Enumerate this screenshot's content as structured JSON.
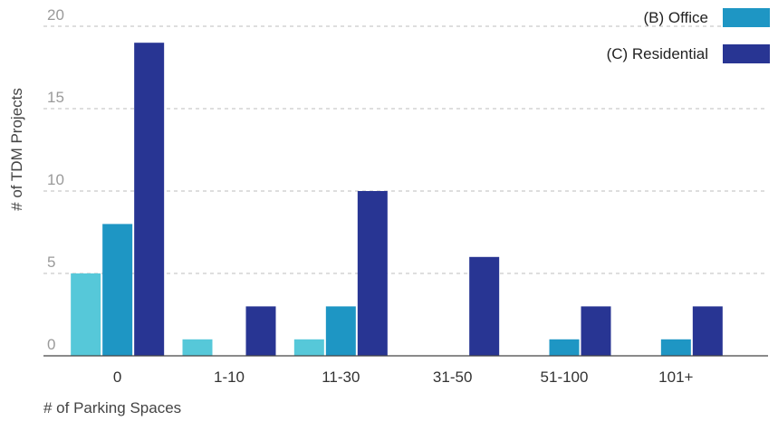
{
  "chart_data": {
    "type": "bar",
    "categories": [
      "0",
      "1-10",
      "11-30",
      "31-50",
      "51-100",
      "101+"
    ],
    "series": [
      {
        "name": "",
        "color": "#56c8d9",
        "values": [
          5,
          1,
          1,
          0,
          0,
          0
        ]
      },
      {
        "name": "(B) Office",
        "color": "#1e96c4",
        "values": [
          8,
          0,
          3,
          0,
          1,
          1
        ]
      },
      {
        "name": "(C) Residential",
        "color": "#283593",
        "values": [
          19,
          3,
          10,
          6,
          3,
          3
        ]
      }
    ],
    "yticks": [
      "0",
      "5",
      "10",
      "15",
      "20"
    ],
    "ylim": [
      0,
      20
    ],
    "xlabel": "# of Parking Spaces",
    "ylabel": "# of TDM Projects",
    "legend_position": "top-right",
    "grid": "horizontal dashed"
  }
}
